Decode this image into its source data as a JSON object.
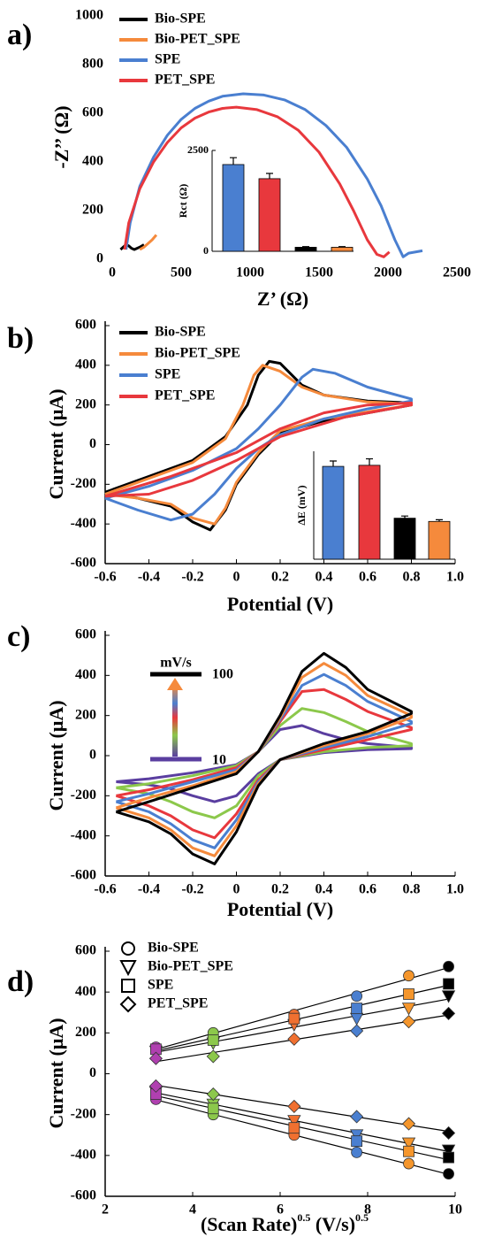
{
  "chart_data": [
    {
      "type": "line",
      "label": "a)",
      "xlabel": "Z’ (Ω)",
      "ylabel": "-Z’’ (Ω)",
      "xlim": [
        0,
        2500
      ],
      "xticks": [
        0,
        500,
        1000,
        1500,
        2000,
        2500
      ],
      "ylim": [
        0,
        1000
      ],
      "yticks": [
        0,
        200,
        400,
        600,
        800,
        1000
      ],
      "series": [
        {
          "name": "Bio-SPE",
          "color": "#000000",
          "x": [
            60,
            80,
            100,
            120,
            140,
            160,
            180,
            200,
            230
          ],
          "values": [
            40,
            50,
            60,
            55,
            45,
            40,
            45,
            50,
            60
          ]
        },
        {
          "name": "Bio-PET_SPE",
          "color": "#f58a3c",
          "x": [
            200,
            230,
            260,
            290,
            320
          ],
          "values": [
            40,
            50,
            65,
            80,
            100
          ]
        },
        {
          "name": "SPE",
          "color": "#4a7fd0",
          "x": [
            100,
            130,
            200,
            300,
            400,
            500,
            600,
            700,
            800,
            950,
            1100,
            1250,
            1400,
            1550,
            1700,
            1850,
            1950,
            2050,
            2110,
            2150,
            2250
          ],
          "values": [
            40,
            150,
            300,
            420,
            510,
            575,
            620,
            650,
            670,
            680,
            675,
            655,
            615,
            550,
            460,
            330,
            220,
            80,
            10,
            25,
            35
          ]
        },
        {
          "name": "PET_SPE",
          "color": "#e8383d",
          "x": [
            90,
            120,
            200,
            300,
            400,
            500,
            600,
            700,
            800,
            900,
            1050,
            1200,
            1350,
            1500,
            1650,
            1750,
            1850,
            1920,
            1970,
            2010
          ],
          "values": [
            40,
            150,
            290,
            400,
            480,
            540,
            580,
            605,
            620,
            625,
            615,
            585,
            530,
            440,
            310,
            200,
            80,
            20,
            10,
            30
          ]
        }
      ]
    },
    {
      "type": "bar",
      "ylabel": "Rct (Ω)",
      "ylim": [
        0,
        2500
      ],
      "yticks": [
        0,
        2500
      ],
      "values": [
        2150,
        1800,
        100,
        100
      ],
      "errors": [
        170,
        130,
        15,
        15
      ],
      "colors": [
        "#4a7fd0",
        "#e8383d",
        "#000000",
        "#f58a3c"
      ]
    },
    {
      "type": "line",
      "label": "b)",
      "xlabel": "Potential (V)",
      "ylabel": "Current (μA)",
      "xlim": [
        -0.6,
        1
      ],
      "xticks": [
        -0.6,
        -0.4,
        -0.2,
        0,
        0.2,
        0.4,
        0.6,
        0.8,
        {
          "value": 1,
          "label": "1.0"
        }
      ],
      "ylim": [
        -600,
        600
      ],
      "yticks": [
        -600,
        -400,
        -200,
        0,
        200,
        400,
        600
      ],
      "series": [
        {
          "name": "Bio-SPE",
          "color": "#000000",
          "x": [
            -0.6,
            -0.4,
            -0.2,
            -0.05,
            0.05,
            0.1,
            0.15,
            0.2,
            0.3,
            0.4,
            0.6,
            0.8,
            0.8,
            0.6,
            0.4,
            0.2,
            0.1,
            0,
            -0.05,
            -0.12,
            -0.2,
            -0.3,
            -0.45,
            -0.6
          ],
          "values": [
            -240,
            -160,
            -80,
            40,
            200,
            350,
            420,
            410,
            300,
            250,
            220,
            210,
            200,
            160,
            120,
            60,
            -50,
            -200,
            -330,
            -430,
            -390,
            -310,
            -270,
            -240
          ]
        },
        {
          "name": "Bio-PET_SPE",
          "color": "#f58a3c",
          "x": [
            -0.6,
            -0.4,
            -0.2,
            -0.05,
            0.03,
            0.08,
            0.12,
            0.2,
            0.3,
            0.4,
            0.6,
            0.8,
            0.8,
            0.6,
            0.4,
            0.2,
            0.1,
            0,
            -0.05,
            -0.1,
            -0.2,
            -0.3,
            -0.45,
            -0.6
          ],
          "values": [
            -250,
            -170,
            -90,
            30,
            200,
            350,
            400,
            370,
            290,
            250,
            215,
            205,
            200,
            165,
            130,
            70,
            -40,
            -190,
            -320,
            -400,
            -370,
            -300,
            -270,
            -250
          ]
        },
        {
          "name": "SPE",
          "color": "#4a7fd0",
          "x": [
            -0.6,
            -0.4,
            -0.2,
            0,
            0.1,
            0.2,
            0.3,
            0.35,
            0.45,
            0.6,
            0.8,
            0.8,
            0.6,
            0.4,
            0.2,
            0.1,
            0,
            -0.1,
            -0.2,
            -0.3,
            -0.45,
            -0.6
          ],
          "values": [
            -270,
            -210,
            -130,
            -20,
            80,
            200,
            340,
            380,
            360,
            290,
            230,
            220,
            180,
            130,
            50,
            -20,
            -120,
            -250,
            -350,
            -380,
            -330,
            -270
          ]
        },
        {
          "name": "PET_SPE",
          "color": "#e8383d",
          "x": [
            -0.6,
            -0.3,
            0,
            0.2,
            0.4,
            0.6,
            0.8,
            0.8,
            0.5,
            0.2,
            0,
            -0.2,
            -0.4,
            -0.6
          ],
          "values": [
            -260,
            -160,
            -40,
            80,
            160,
            200,
            210,
            200,
            140,
            40,
            -80,
            -180,
            -250,
            -260
          ]
        }
      ]
    },
    {
      "type": "bar",
      "ylabel": "ΔE (mV)",
      "ylim": [
        0,
        500
      ],
      "values": [
        430,
        435,
        190,
        175
      ],
      "errors": [
        25,
        30,
        10,
        8
      ],
      "colors": [
        "#4a7fd0",
        "#e8383d",
        "#000000",
        "#f58a3c"
      ]
    },
    {
      "type": "line",
      "label": "c)",
      "xlabel": "Potential (V)",
      "ylabel": "Current (μA)",
      "xlim": [
        -0.6,
        1
      ],
      "xticks": [
        -0.6,
        -0.4,
        -0.2,
        0,
        0.2,
        0.4,
        0.6,
        0.8,
        {
          "value": 1,
          "label": "1.0"
        }
      ],
      "ylim": [
        -600,
        600
      ],
      "yticks": [
        -600,
        -400,
        -200,
        0,
        200,
        400,
        600
      ],
      "scale_unit": "mV/s",
      "scale_high": "100",
      "scale_low": "10",
      "x": [
        -0.55,
        -0.4,
        -0.2,
        0,
        0.1,
        0.2,
        0.3,
        0.4,
        0.5,
        0.6,
        0.8,
        0.8,
        0.6,
        0.4,
        0.2,
        0.1,
        0,
        -0.1,
        -0.2,
        -0.3,
        -0.4,
        -0.55
      ],
      "series": [
        {
          "color": "#5a3ea0",
          "values": [
            -130,
            -115,
            -85,
            -45,
            20,
            130,
            150,
            110,
            80,
            60,
            40,
            35,
            30,
            15,
            -20,
            -90,
            -200,
            -230,
            -200,
            -165,
            -145,
            -130
          ]
        },
        {
          "color": "#8cc84b",
          "values": [
            -160,
            -140,
            -100,
            -50,
            20,
            150,
            235,
            215,
            170,
            120,
            60,
            50,
            40,
            20,
            -20,
            -100,
            -250,
            -310,
            -280,
            -230,
            -190,
            -160
          ]
        },
        {
          "color": "#e8383d",
          "values": [
            -200,
            -170,
            -120,
            -60,
            20,
            170,
            320,
            330,
            280,
            220,
            140,
            130,
            80,
            30,
            -20,
            -120,
            -290,
            -410,
            -370,
            -300,
            -250,
            -200
          ]
        },
        {
          "color": "#4a7fd0",
          "values": [
            -230,
            -190,
            -130,
            -70,
            20,
            180,
            350,
            405,
            350,
            270,
            170,
            160,
            95,
            40,
            -20,
            -130,
            -320,
            -460,
            -420,
            -340,
            -280,
            -230
          ]
        },
        {
          "color": "#f58a3c",
          "values": [
            -260,
            -210,
            -150,
            -80,
            20,
            190,
            390,
            460,
            400,
            300,
            200,
            190,
            110,
            50,
            -20,
            -140,
            -350,
            -500,
            -460,
            -370,
            -310,
            -260
          ]
        },
        {
          "color": "#000000",
          "values": [
            -280,
            -230,
            -160,
            -90,
            20,
            200,
            420,
            510,
            440,
            330,
            220,
            210,
            120,
            60,
            -20,
            -150,
            -380,
            -540,
            -490,
            -390,
            -330,
            -280
          ]
        }
      ]
    },
    {
      "type": "scatter",
      "label": "d)",
      "xlabel_parts": [
        "(Scan Rate)",
        "0.5",
        " (V/s)",
        "0.5"
      ],
      "ylabel": "Current (μA)",
      "xlim": [
        2,
        10
      ],
      "xticks": [
        2,
        4,
        6,
        8,
        10
      ],
      "ylim": [
        -600,
        600
      ],
      "yticks": [
        -600,
        -400,
        -200,
        0,
        200,
        400,
        600
      ],
      "x": [
        3.16,
        4.47,
        6.32,
        7.75,
        8.94,
        9.85
      ],
      "point_colors": [
        "#b040b0",
        "#8cc84b",
        "#f07030",
        "#4a7fd0",
        "#f5962c",
        "#000000"
      ],
      "series": [
        {
          "name": "Bio-SPE",
          "marker": "circle",
          "anodic": [
            130,
            200,
            290,
            380,
            480,
            525
          ],
          "cathodic": [
            -125,
            -200,
            -300,
            -385,
            -440,
            -490
          ]
        },
        {
          "name": "Bio-PET_SPE",
          "marker": "triangle-down",
          "anodic": [
            110,
            150,
            240,
            270,
            320,
            380
          ],
          "cathodic": [
            -90,
            -150,
            -230,
            -300,
            -340,
            -375
          ]
        },
        {
          "name": "SPE",
          "marker": "square",
          "anodic": [
            120,
            165,
            270,
            320,
            390,
            440
          ],
          "cathodic": [
            -100,
            -170,
            -265,
            -330,
            -380,
            -410
          ]
        },
        {
          "name": "PET_SPE",
          "marker": "diamond",
          "anodic": [
            75,
            85,
            170,
            210,
            255,
            295
          ],
          "cathodic": [
            -60,
            -100,
            -160,
            -210,
            -245,
            -290
          ]
        }
      ]
    }
  ]
}
